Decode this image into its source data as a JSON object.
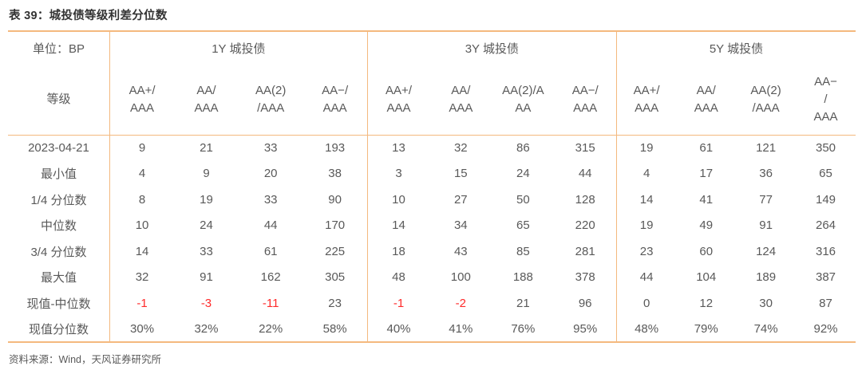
{
  "title": "表 39：城投债等级利差分位数",
  "table": {
    "unit_label": "单位：BP",
    "grade_label": "等级",
    "sections": [
      {
        "label": "1Y 城投债",
        "columns": [
          "AA+/\nAAA",
          "AA/\nAAA",
          "AA(2)\n/AAA",
          "AA−/\nAAA"
        ]
      },
      {
        "label": "3Y 城投债",
        "columns": [
          "AA+/\nAAA",
          "AA/\nAAA",
          "AA(2)/A\nAA",
          "AA−/\nAAA"
        ]
      },
      {
        "label": "5Y 城投债",
        "columns": [
          "AA+/\nAAA",
          "AA/\nAAA",
          "AA(2)\n/AAA",
          "AA−\n/\nAAA"
        ]
      }
    ],
    "rows": [
      {
        "label": "2023-04-21",
        "values": [
          "9",
          "21",
          "33",
          "193",
          "13",
          "32",
          "86",
          "315",
          "19",
          "61",
          "121",
          "350"
        ]
      },
      {
        "label": "最小值",
        "values": [
          "4",
          "9",
          "20",
          "38",
          "3",
          "15",
          "24",
          "44",
          "4",
          "17",
          "36",
          "65"
        ]
      },
      {
        "label": "1/4 分位数",
        "values": [
          "8",
          "19",
          "33",
          "90",
          "10",
          "27",
          "50",
          "128",
          "14",
          "41",
          "77",
          "149"
        ]
      },
      {
        "label": "中位数",
        "values": [
          "10",
          "24",
          "44",
          "170",
          "14",
          "34",
          "65",
          "220",
          "19",
          "49",
          "91",
          "264"
        ]
      },
      {
        "label": "3/4 分位数",
        "values": [
          "14",
          "33",
          "61",
          "225",
          "18",
          "43",
          "85",
          "281",
          "23",
          "60",
          "124",
          "316"
        ]
      },
      {
        "label": "最大值",
        "values": [
          "32",
          "91",
          "162",
          "305",
          "48",
          "100",
          "188",
          "378",
          "44",
          "104",
          "189",
          "387"
        ]
      },
      {
        "label": "现值-中位数",
        "values": [
          "-1",
          "-3",
          "-11",
          "23",
          "-1",
          "-2",
          "21",
          "96",
          "0",
          "12",
          "30",
          "87"
        ]
      },
      {
        "label": "现值分位数",
        "values": [
          "30%",
          "32%",
          "22%",
          "58%",
          "40%",
          "41%",
          "76%",
          "95%",
          "48%",
          "79%",
          "74%",
          "92%"
        ]
      }
    ]
  },
  "footer": "资料来源：Wind，天风证券研究所",
  "colors": {
    "border": "#F4B97E",
    "text": "#595959",
    "negative": "#FF2B2B",
    "title": "#333333"
  }
}
